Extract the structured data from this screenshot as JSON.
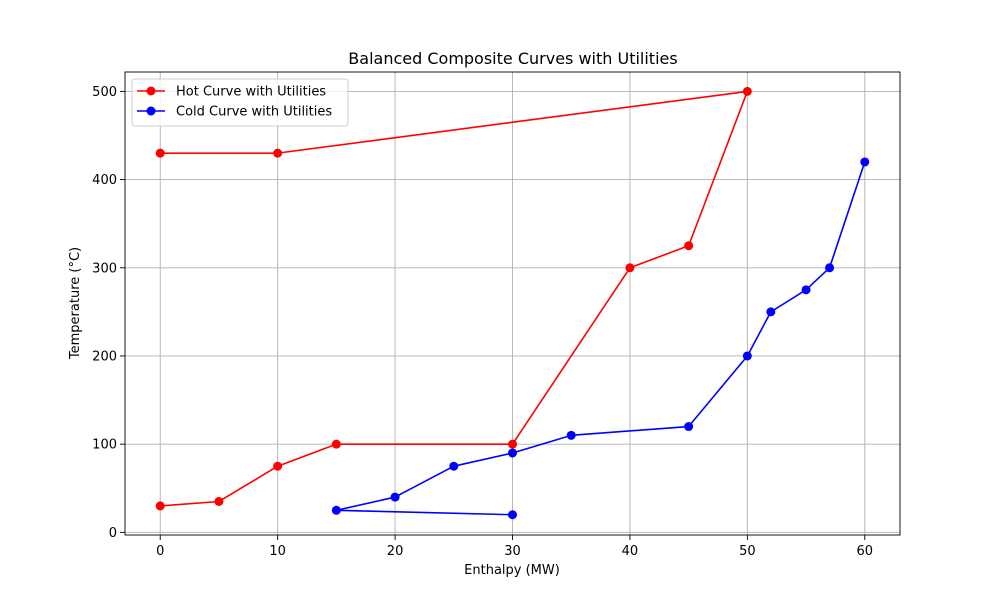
{
  "chart_data": {
    "type": "line",
    "title": "Balanced Composite Curves with Utilities",
    "xlabel": "Enthalpy (MW)",
    "ylabel": "Temperature (°C)",
    "xlim": [
      -3,
      63
    ],
    "ylim": [
      -3,
      522
    ],
    "xticks": [
      0,
      10,
      20,
      30,
      40,
      50,
      60
    ],
    "yticks": [
      0,
      100,
      200,
      300,
      400,
      500
    ],
    "grid": true,
    "legend_position": "top-left",
    "series": [
      {
        "name": "Hot Curve with Utilities",
        "color": "#ff0000",
        "marker": "circle",
        "x": [
          0,
          5,
          10,
          15,
          30,
          40,
          45,
          50,
          10,
          0
        ],
        "y": [
          30,
          35,
          75,
          100,
          100,
          300,
          325,
          500,
          430,
          430
        ]
      },
      {
        "name": "Cold Curve with Utilities",
        "color": "#0000ff",
        "marker": "circle",
        "x": [
          30,
          15,
          20,
          25,
          30,
          35,
          45,
          50,
          52,
          55,
          57,
          60
        ],
        "y": [
          20,
          25,
          40,
          75,
          90,
          110,
          120,
          200,
          250,
          275,
          300,
          420
        ]
      }
    ]
  }
}
